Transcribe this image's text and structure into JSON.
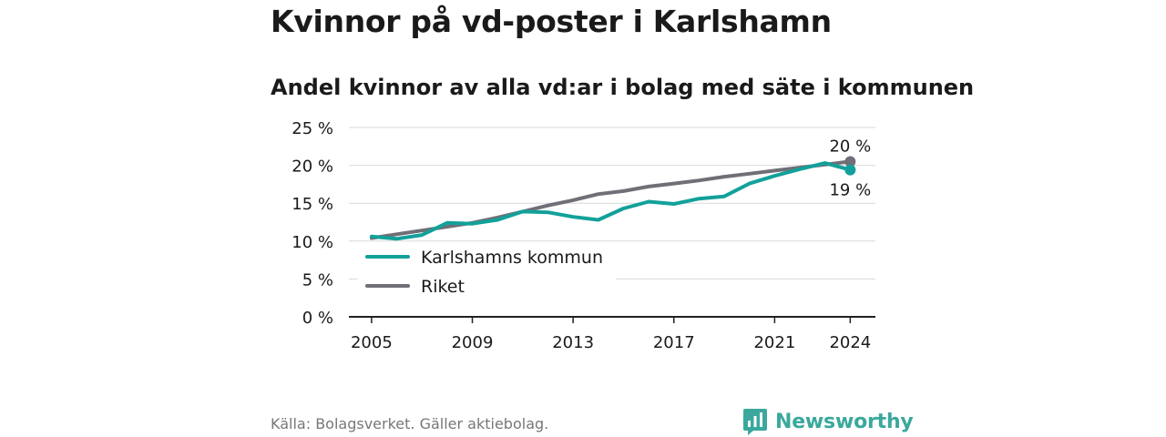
{
  "header": {
    "title": "Kvinnor på vd-poster i Karlshamn",
    "subtitle": "Andel kvinnor av alla vd:ar i bolag med säte i kommunen"
  },
  "chart_data": {
    "type": "line",
    "title": "Kvinnor på vd-poster i Karlshamn",
    "subtitle": "Andel kvinnor av alla vd:ar i bolag med säte i kommunen",
    "xlabel": "",
    "ylabel": "",
    "x": [
      2005,
      2006,
      2007,
      2008,
      2009,
      2010,
      2011,
      2012,
      2013,
      2014,
      2015,
      2016,
      2017,
      2018,
      2019,
      2020,
      2021,
      2022,
      2023,
      2024
    ],
    "x_ticks": [
      2005,
      2009,
      2013,
      2017,
      2021,
      2024
    ],
    "x_tick_labels": [
      "2005",
      "2009",
      "2013",
      "2017",
      "2021",
      "2024"
    ],
    "ylim": [
      0,
      25
    ],
    "y_ticks": [
      0,
      5,
      10,
      15,
      20,
      25
    ],
    "y_tick_labels": [
      "0 %",
      "5 %",
      "10 %",
      "15 %",
      "20 %",
      "25 %"
    ],
    "grid": true,
    "legend_position": "lower-left",
    "series": [
      {
        "name": "Karlshamns kommun",
        "color": "#12a19a",
        "values": [
          10.6,
          10.3,
          10.8,
          12.4,
          12.3,
          12.8,
          13.9,
          13.8,
          13.2,
          12.8,
          14.3,
          15.2,
          14.9,
          15.6,
          15.9,
          17.6,
          18.6,
          19.5,
          20.3,
          19.4
        ],
        "end_label": "19 %"
      },
      {
        "name": "Riket",
        "color": "#706e77",
        "values": [
          10.4,
          10.9,
          11.4,
          11.9,
          12.4,
          13.1,
          13.9,
          14.7,
          15.4,
          16.2,
          16.6,
          17.2,
          17.6,
          18.0,
          18.5,
          18.9,
          19.3,
          19.7,
          20.1,
          20.5
        ],
        "end_label": "20 %"
      }
    ]
  },
  "footer": {
    "source": "Källa: Bolagsverket. Gäller aktiebolag.",
    "brand": "Newsworthy",
    "brand_color": "#3aa89c"
  }
}
